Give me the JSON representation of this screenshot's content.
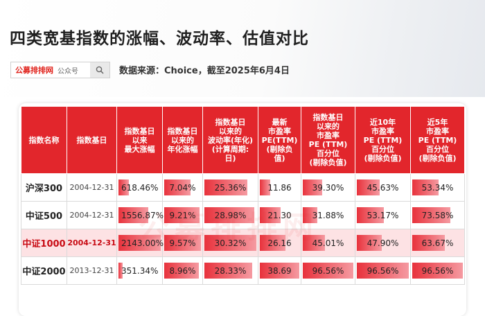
{
  "title": "四类宽基指数的涨幅、波动率、估值对比",
  "brand": {
    "name": "公募排排网",
    "suffix": "公众号",
    "icon": "search-icon"
  },
  "source": "数据来源：Choice，截至2025年6月4日",
  "watermark": "公募排排网",
  "headers": [
    [
      "指数名称"
    ],
    [
      "指数基日"
    ],
    [
      "指数基日",
      "以来",
      "最大涨幅"
    ],
    [
      "指数基日",
      "以来的",
      "年化涨幅"
    ],
    [
      "指数基日",
      "以来的",
      "波动率(年化)",
      "(计算周期:",
      "日)"
    ],
    [
      "最新",
      "市盈率",
      "PE(TTM)",
      "(剔除负",
      "值)"
    ],
    [
      "指数基日",
      "以来的",
      "市盈率",
      "PE (TTM)",
      "百分位",
      "(剔除负值)"
    ],
    [
      "近10年",
      "市盈率",
      "PE (TTM)",
      "百分位",
      "(剔除负值)"
    ],
    [
      "近5年",
      "市盈率",
      "PE (TTM)",
      "百分位",
      "(剔除负值)"
    ]
  ],
  "rows": [
    {
      "name": "沪深300",
      "base": "2004-12-31",
      "max_gain": "618.46%",
      "annual": "7.04%",
      "vol": "25.36%",
      "pe": "11.86",
      "pct_all": "39.30%",
      "pct10": "45.63%",
      "pct5": "53.34%",
      "highlight": false
    },
    {
      "name": "中证500",
      "base": "2004-12-31",
      "max_gain": "1556.87%",
      "annual": "9.21%",
      "vol": "28.98%",
      "pe": "21.30",
      "pct_all": "31.88%",
      "pct10": "53.17%",
      "pct5": "73.58%",
      "highlight": false
    },
    {
      "name": "中证1000",
      "base": "2004-12-31",
      "max_gain": "2143.00%",
      "annual": "9.57%",
      "vol": "30.32%",
      "pe": "26.16",
      "pct_all": "45.01%",
      "pct10": "47.90%",
      "pct5": "63.67%",
      "highlight": true
    },
    {
      "name": "中证2000",
      "base": "2013-12-31",
      "max_gain": "351.34%",
      "annual": "8.96%",
      "vol": "28.33%",
      "pe": "38.69",
      "pct_all": "96.56%",
      "pct10": "96.56%",
      "pct5": "96.56%",
      "highlight": false
    }
  ],
  "bar_fractions": {
    "max_gain": [
      0.29,
      0.73,
      1.0,
      0.16
    ],
    "annual": [
      0.74,
      0.96,
      1.0,
      0.94
    ],
    "vol": [
      0.84,
      0.96,
      1.0,
      0.93
    ],
    "pe": [
      0.31,
      0.55,
      0.68,
      1.0
    ],
    "pct_all": [
      0.41,
      0.33,
      0.47,
      1.0
    ],
    "pct10": [
      0.47,
      0.55,
      0.5,
      1.0
    ],
    "pct5": [
      0.55,
      0.76,
      0.66,
      1.0
    ]
  },
  "colors": {
    "header_bg": "#e2262c",
    "highlight_row": "#fde2e4",
    "bar_start": "#e8323c",
    "bar_end": "#f59aa1",
    "brand_red": "#e0231c"
  }
}
